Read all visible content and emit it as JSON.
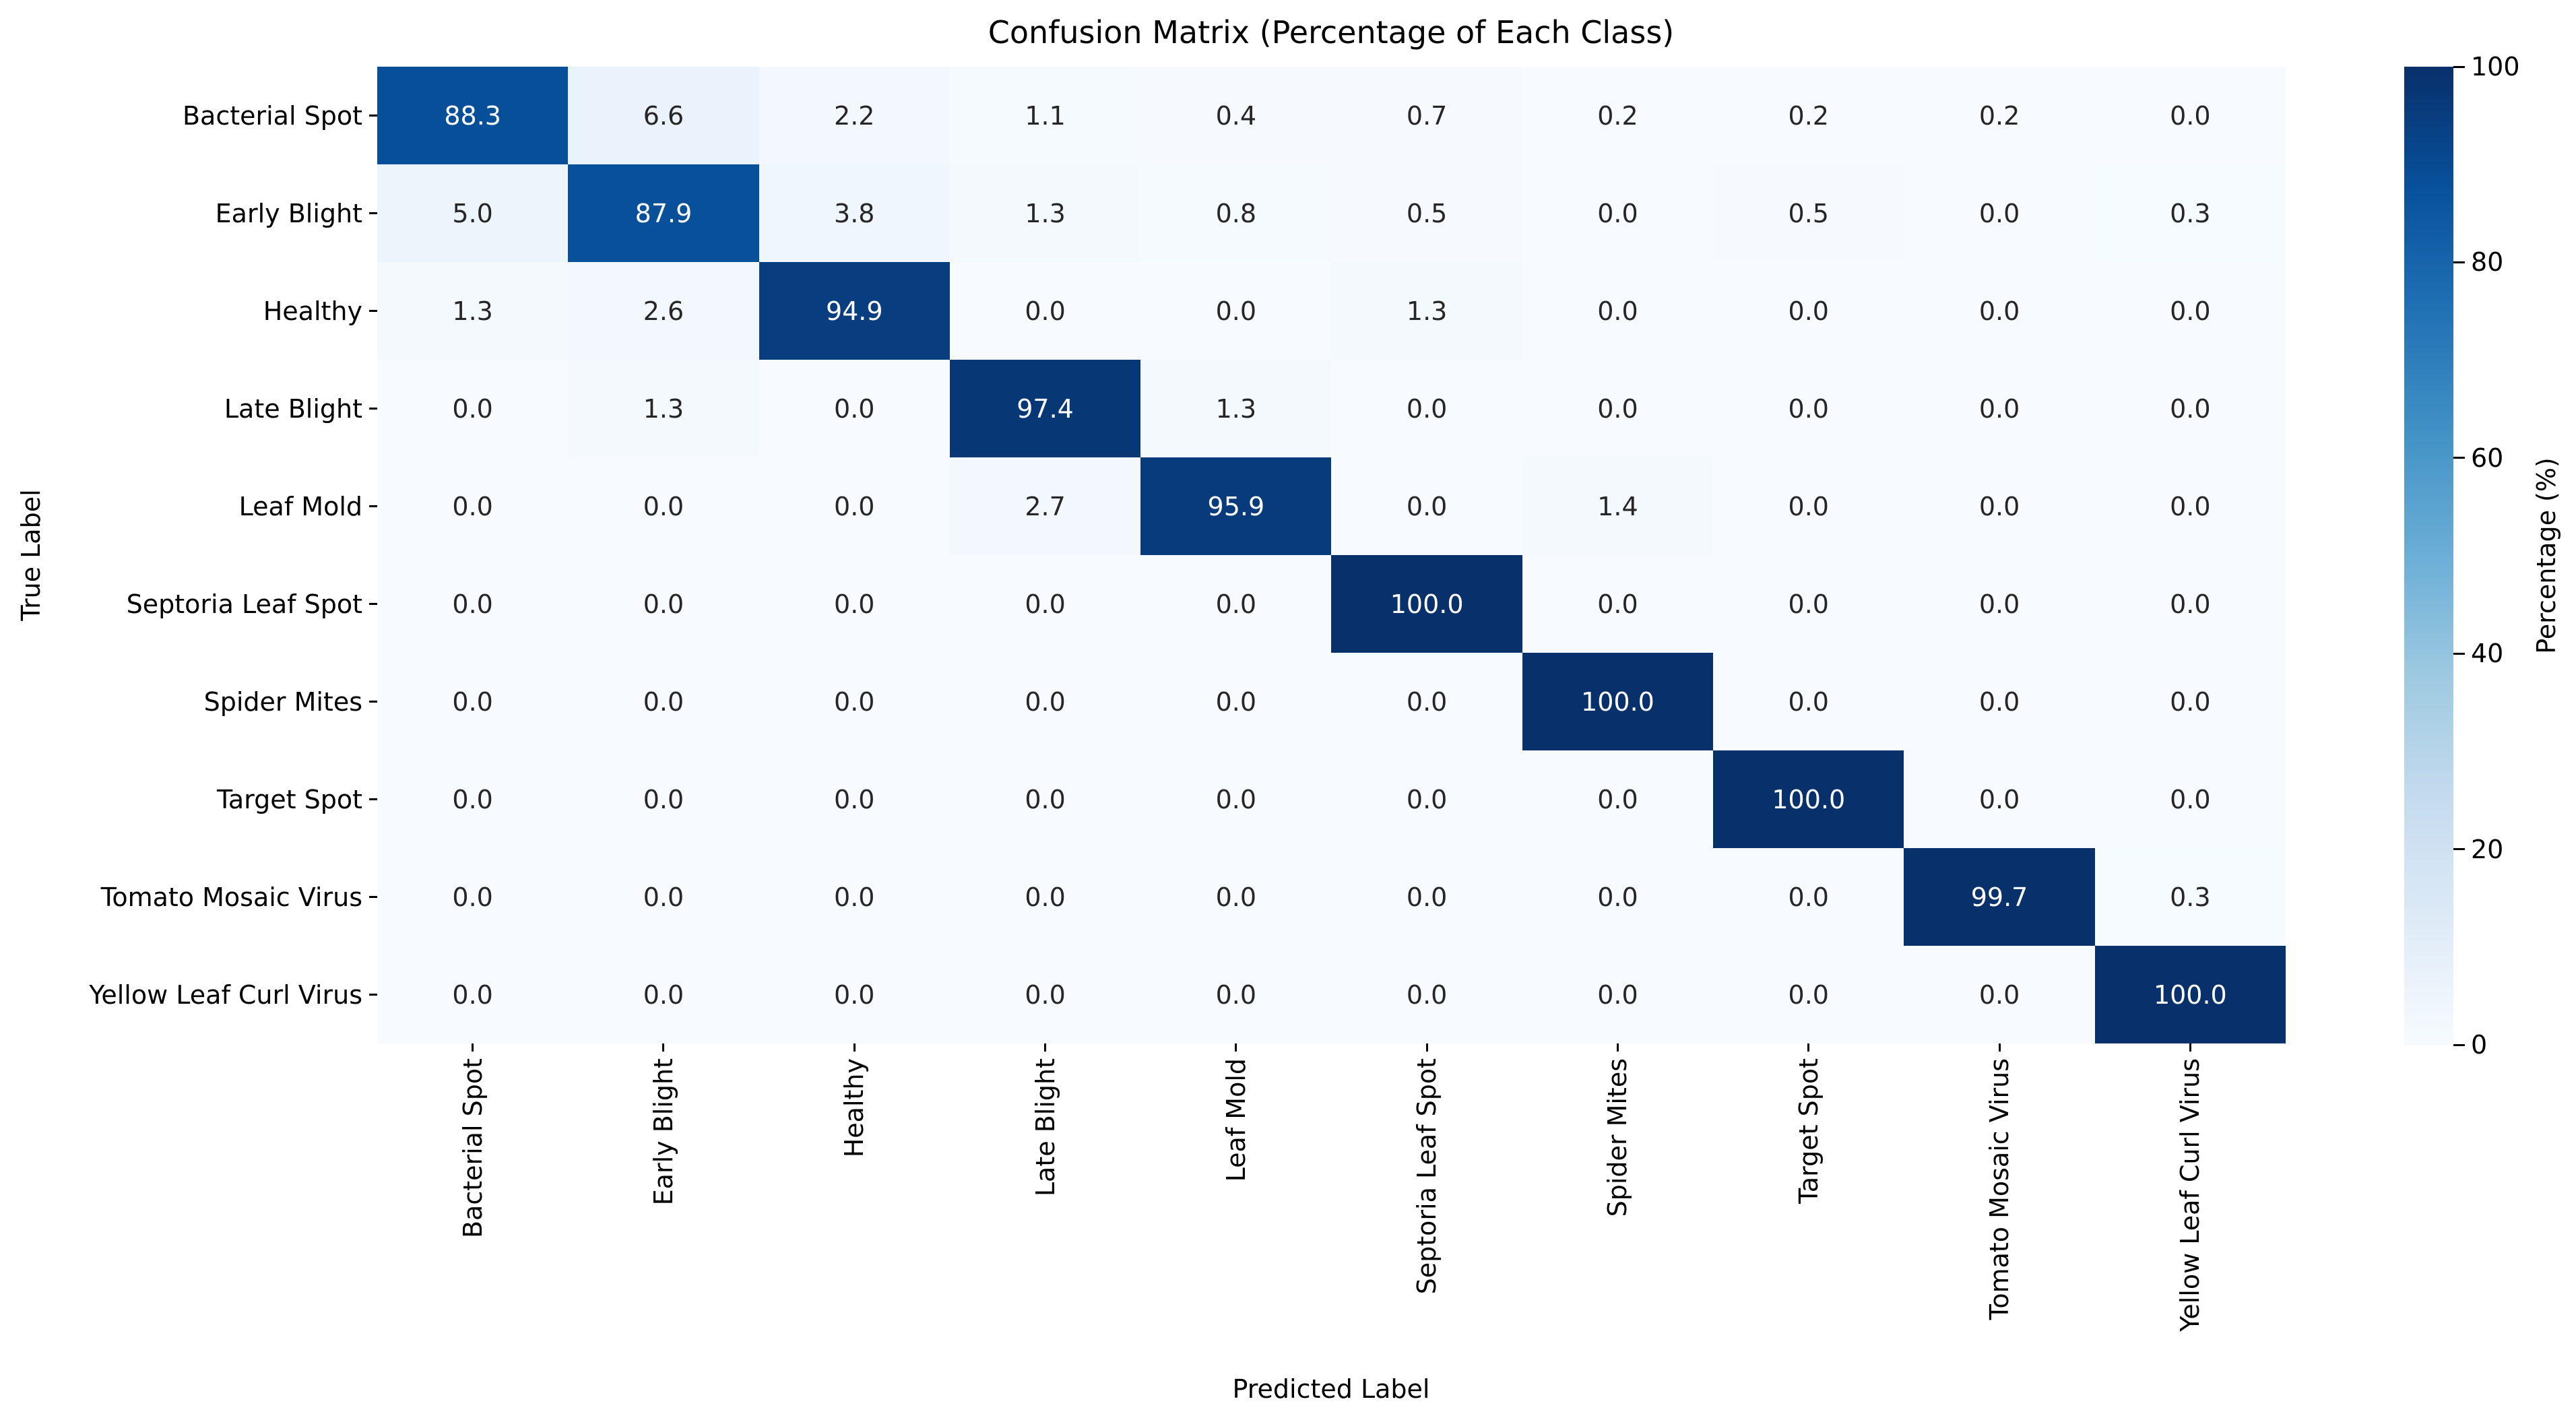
{
  "figure": {
    "background": "#ffffff"
  },
  "chart_data": {
    "type": "heatmap",
    "title": "Confusion Matrix (Percentage of Each Class)",
    "xlabel": "Predicted Label",
    "ylabel": "True Label",
    "classes": [
      "Bacterial Spot",
      "Early Blight",
      "Healthy",
      "Late Blight",
      "Leaf Mold",
      "Septoria Leaf Spot",
      "Spider Mites",
      "Target Spot",
      "Tomato Mosaic Virus",
      "Yellow Leaf Curl Virus"
    ],
    "matrix": [
      [
        88.3,
        6.6,
        2.2,
        1.1,
        0.4,
        0.7,
        0.2,
        0.2,
        0.2,
        0.0
      ],
      [
        5.0,
        87.9,
        3.8,
        1.3,
        0.8,
        0.5,
        0.0,
        0.5,
        0.0,
        0.3
      ],
      [
        1.3,
        2.6,
        94.9,
        0.0,
        0.0,
        1.3,
        0.0,
        0.0,
        0.0,
        0.0
      ],
      [
        0.0,
        1.3,
        0.0,
        97.4,
        1.3,
        0.0,
        0.0,
        0.0,
        0.0,
        0.0
      ],
      [
        0.0,
        0.0,
        0.0,
        2.7,
        95.9,
        0.0,
        1.4,
        0.0,
        0.0,
        0.0
      ],
      [
        0.0,
        0.0,
        0.0,
        0.0,
        0.0,
        100.0,
        0.0,
        0.0,
        0.0,
        0.0
      ],
      [
        0.0,
        0.0,
        0.0,
        0.0,
        0.0,
        0.0,
        100.0,
        0.0,
        0.0,
        0.0
      ],
      [
        0.0,
        0.0,
        0.0,
        0.0,
        0.0,
        0.0,
        0.0,
        100.0,
        0.0,
        0.0
      ],
      [
        0.0,
        0.0,
        0.0,
        0.0,
        0.0,
        0.0,
        0.0,
        0.0,
        99.7,
        0.3
      ],
      [
        0.0,
        0.0,
        0.0,
        0.0,
        0.0,
        0.0,
        0.0,
        0.0,
        0.0,
        100.0
      ]
    ],
    "vmin": 0,
    "vmax": 100,
    "grid": false,
    "annotation_format": ".1f",
    "colorbar": {
      "label": "Percentage (%)",
      "ticks": [
        0,
        20,
        40,
        60,
        80,
        100
      ],
      "position": "right"
    },
    "colormap": {
      "name": "Blues",
      "anchors": [
        "#f7fbff",
        "#deebf7",
        "#c6dbef",
        "#9ecae1",
        "#6baed6",
        "#4292c6",
        "#2171b5",
        "#08519c",
        "#08306b"
      ]
    },
    "colors": {
      "annotation_dark": "#262626",
      "annotation_light": "#ffffff",
      "tick_text": "#000000"
    }
  }
}
